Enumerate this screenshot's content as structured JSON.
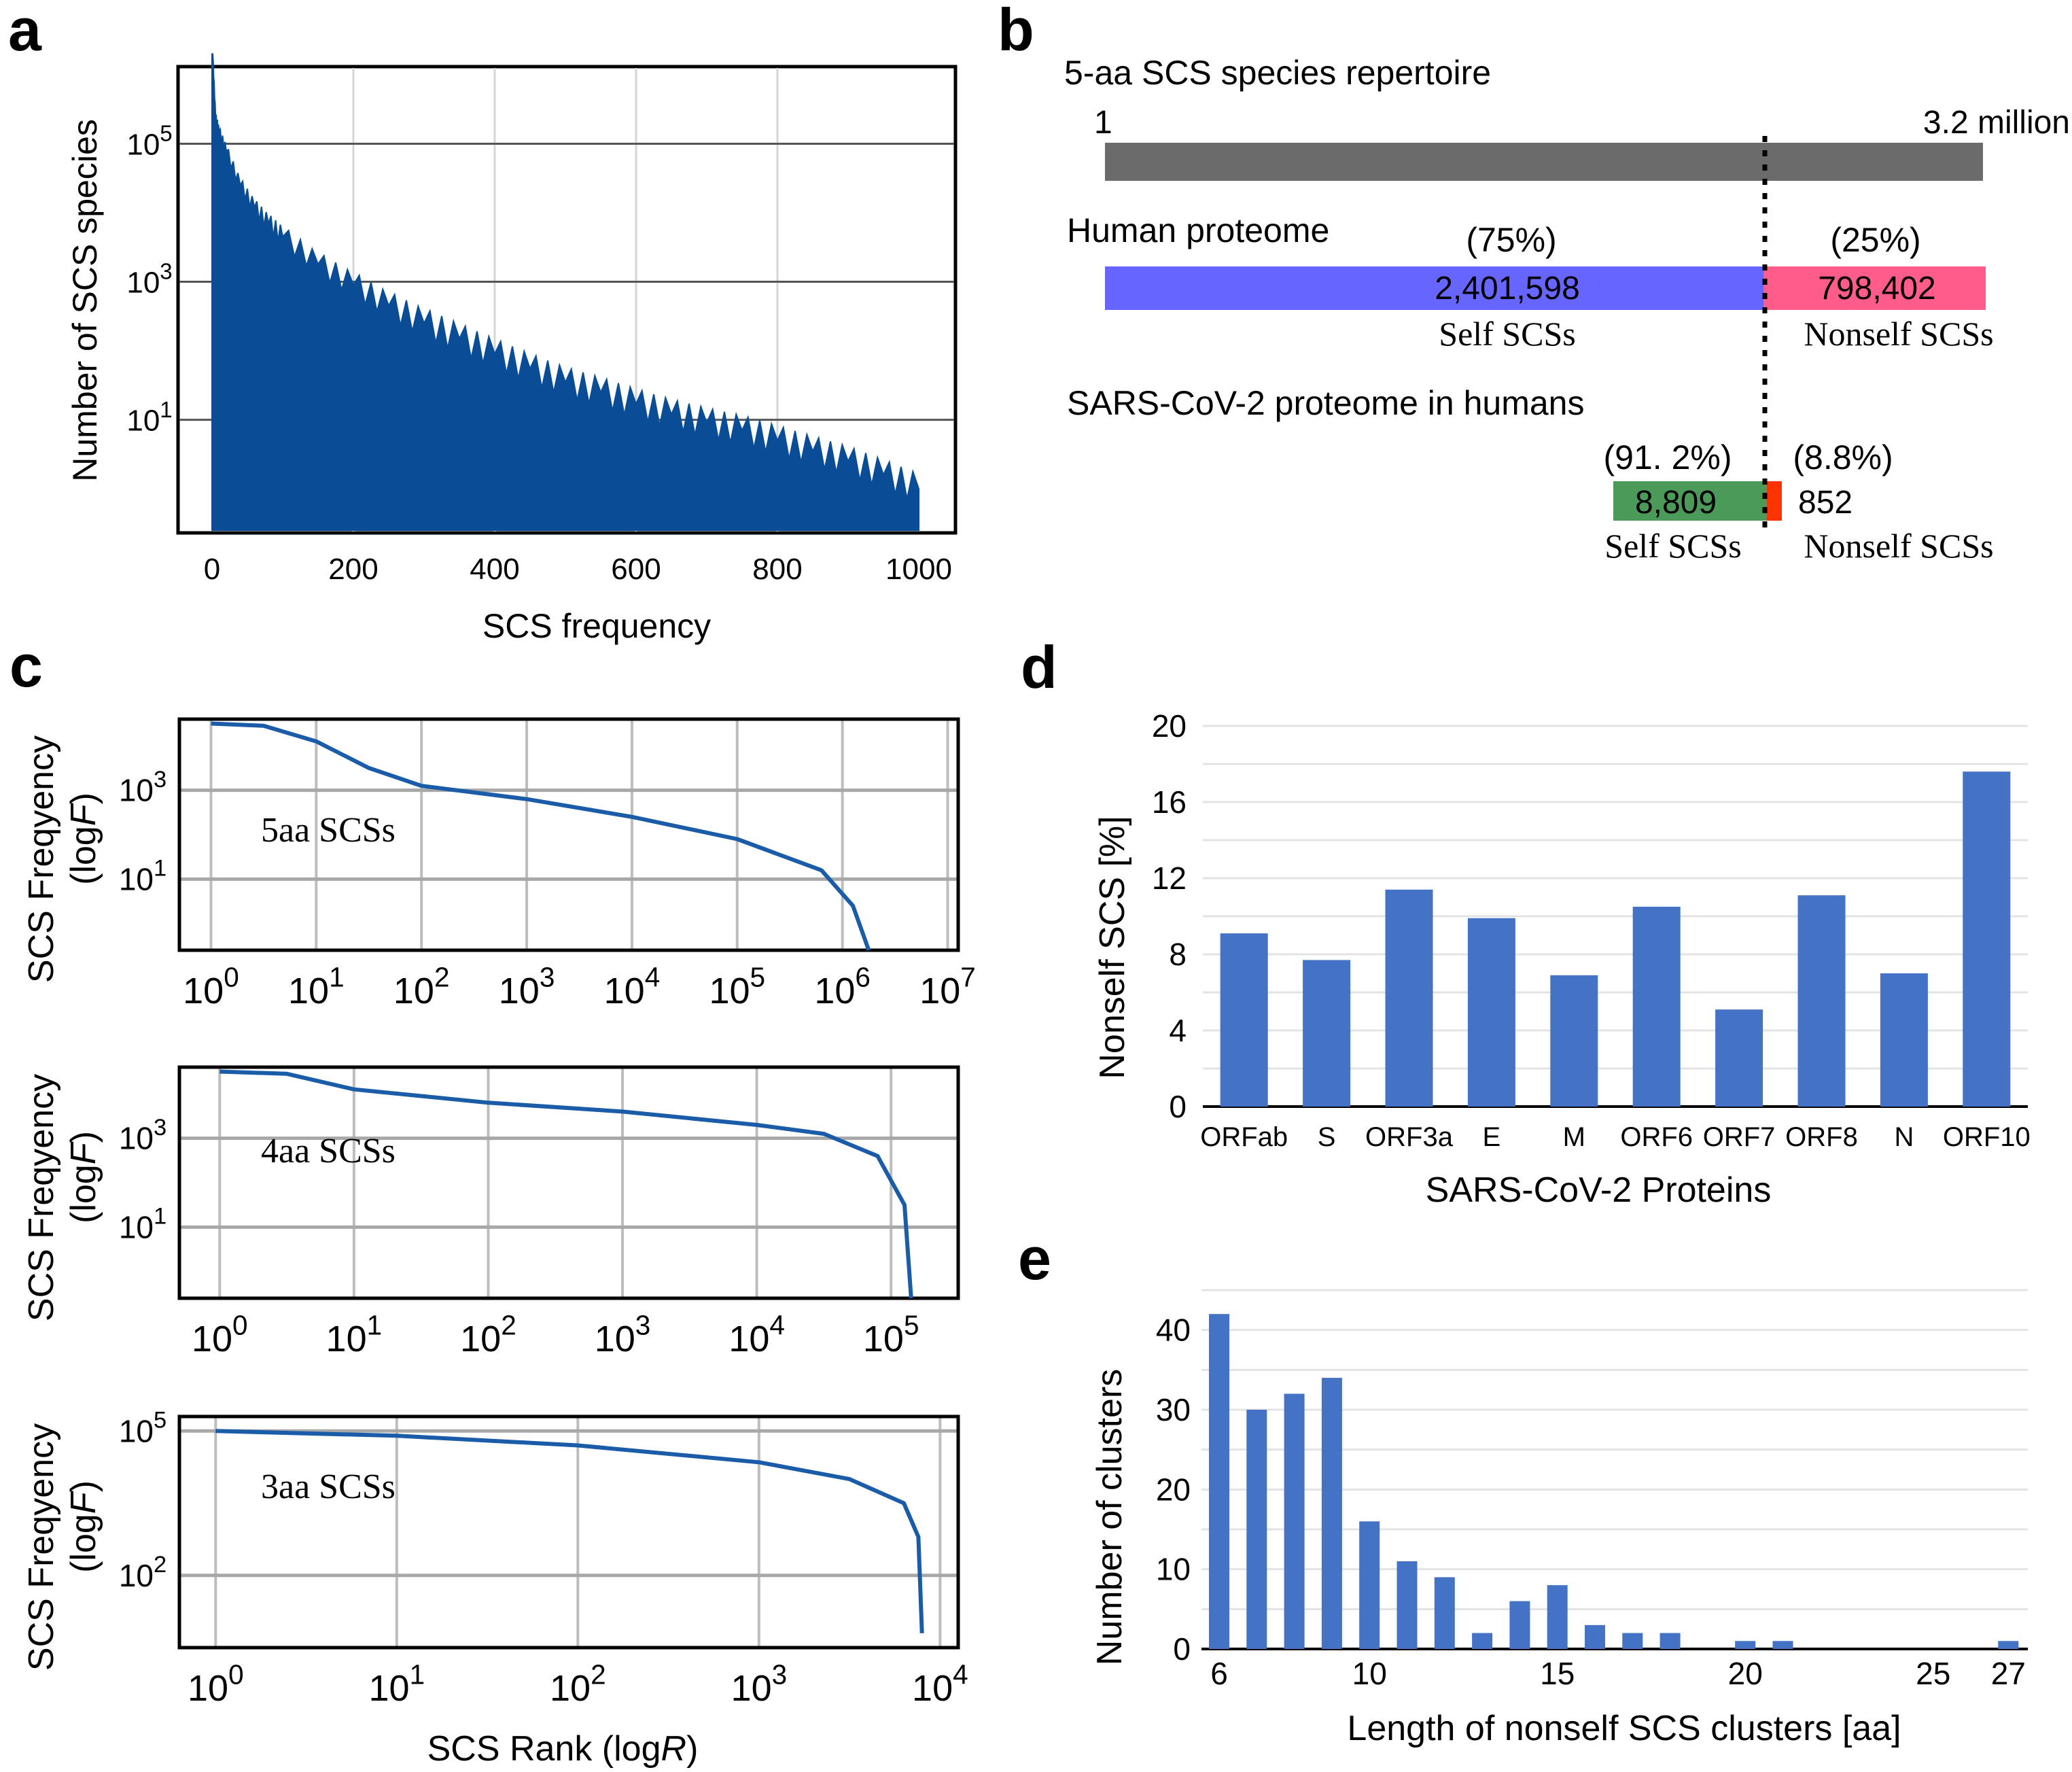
{
  "chart_data": [
    {
      "panel": "a",
      "type": "area",
      "xlabel": "SCS frequency",
      "ylabel": "Number of SCS species",
      "x_ticks": [
        "0",
        "200",
        "400",
        "600",
        "800",
        "1000"
      ],
      "y_ticks": [
        {
          "base": "10",
          "exp": "1"
        },
        {
          "base": "10",
          "exp": "3"
        },
        {
          "base": "10",
          "exp": "5"
        }
      ],
      "xlim": [
        0,
        1000
      ],
      "ylim_log10": [
        -0.6,
        6
      ],
      "x": [
        1,
        5,
        10,
        20,
        40,
        60,
        80,
        100,
        150,
        200,
        250,
        300,
        350,
        400,
        450,
        500,
        550,
        600,
        650,
        700,
        750,
        800,
        850,
        900,
        950,
        1000
      ],
      "values": [
        2000000,
        250000,
        150000,
        80000,
        25000,
        12000,
        7000,
        4500,
        1800,
        900,
        450,
        250,
        150,
        90,
        55,
        35,
        25,
        17,
        12,
        9,
        7,
        5,
        3.5,
        2.5,
        1.6,
        1
      ],
      "grid": true
    },
    {
      "panel": "b",
      "type": "bar",
      "title": "5-aa SCS species repertoire",
      "repertoire": {
        "start_label": "1",
        "end_label": "3.2 million",
        "color": "#6b6b6b"
      },
      "groups": [
        {
          "name": "Human proteome",
          "segments": [
            {
              "value": 2401598,
              "label": "2,401,598",
              "pct": "(75%)",
              "category": "Self SCSs",
              "color": "#6666ff"
            },
            {
              "value": 798402,
              "label": "798,402",
              "pct": "(25%)",
              "category": "Nonself SCSs",
              "color": "#ff5c8a"
            }
          ]
        },
        {
          "name": "SARS-CoV-2 proteome in humans",
          "segments": [
            {
              "value": 8809,
              "label": "8,809",
              "pct": "(91. 2%)",
              "category": "Self SCSs",
              "color": "#4c9a5a"
            },
            {
              "value": 852,
              "label": "852",
              "pct": "(8.8%)",
              "category": "Nonself SCSs",
              "color": "#ff3300"
            }
          ]
        }
      ]
    },
    {
      "panel": "c",
      "type": "line",
      "xlabel_prefix": "SCS Rank (log",
      "xlabel_var": "R",
      "xlabel_suffix": ")",
      "ylabel_line1": "SCS Freqyency",
      "ylabel_line2_prefix": "(log",
      "ylabel_line2_var": "F",
      "ylabel_line2_suffix": ")",
      "series": [
        {
          "name": "5aa SCSs",
          "x_ticks": [
            "0",
            "1",
            "2",
            "3",
            "4",
            "5",
            "6",
            "7"
          ],
          "y_ticks": [
            "1",
            "3"
          ],
          "log_rank": [
            0,
            0.5,
            1,
            1.5,
            2,
            3,
            4,
            5,
            5.8,
            6.1,
            6.25
          ],
          "log_freq": [
            4.5,
            4.45,
            4.1,
            3.5,
            3.1,
            2.8,
            2.4,
            1.9,
            1.2,
            0.4,
            -0.6
          ]
        },
        {
          "name": "4aa SCSs",
          "x_ticks": [
            "0",
            "1",
            "2",
            "3",
            "4",
            "5"
          ],
          "y_ticks": [
            "1",
            "3"
          ],
          "log_rank": [
            0,
            0.5,
            1,
            1.5,
            2,
            3,
            4,
            4.5,
            4.9,
            5.1,
            5.15
          ],
          "log_freq": [
            4.5,
            4.45,
            4.1,
            3.95,
            3.8,
            3.6,
            3.3,
            3.1,
            2.6,
            1.5,
            -0.6
          ]
        },
        {
          "name": "3aa SCSs",
          "x_ticks": [
            "0",
            "1",
            "2",
            "3",
            "4"
          ],
          "y_ticks": [
            "2",
            "5"
          ],
          "log_rank": [
            0,
            1,
            2,
            3,
            3.5,
            3.8,
            3.88,
            3.9
          ],
          "log_freq": [
            5,
            4.9,
            4.7,
            4.35,
            4.0,
            3.5,
            2.8,
            0.8
          ]
        }
      ]
    },
    {
      "panel": "d",
      "type": "bar",
      "xlabel": "SARS-CoV-2 Proteins",
      "ylabel": "Nonself SCS [%]",
      "categories": [
        "ORFab",
        "S",
        "ORF3a",
        "E",
        "M",
        "ORF6",
        "ORF7",
        "ORF8",
        "N",
        "ORF10"
      ],
      "values": [
        9.1,
        7.7,
        11.4,
        9.9,
        6.9,
        10.5,
        5.1,
        11.1,
        7.0,
        17.6
      ],
      "y_ticks": [
        "0",
        "4",
        "8",
        "12",
        "16",
        "20"
      ],
      "ylim": [
        0,
        20
      ],
      "color": "#4472c4"
    },
    {
      "panel": "e",
      "type": "bar",
      "xlabel": "Length of nonself SCS clusters [aa]",
      "ylabel": "Number of clusters",
      "x": [
        6,
        7,
        8,
        9,
        10,
        11,
        12,
        13,
        14,
        15,
        16,
        17,
        18,
        19,
        20,
        21,
        22,
        23,
        24,
        25,
        26,
        27
      ],
      "values": [
        42,
        30,
        32,
        34,
        16,
        11,
        9,
        2,
        6,
        8,
        3,
        2,
        2,
        0,
        1,
        1,
        0,
        0,
        0,
        0,
        0,
        1
      ],
      "x_ticks": [
        "6",
        "10",
        "15",
        "20",
        "25",
        "27"
      ],
      "y_ticks": [
        "0",
        "10",
        "20",
        "30",
        "40"
      ],
      "ylim": [
        0,
        45
      ],
      "color": "#4472c4"
    }
  ],
  "panel_letters": [
    "a",
    "b",
    "c",
    "d",
    "e"
  ]
}
